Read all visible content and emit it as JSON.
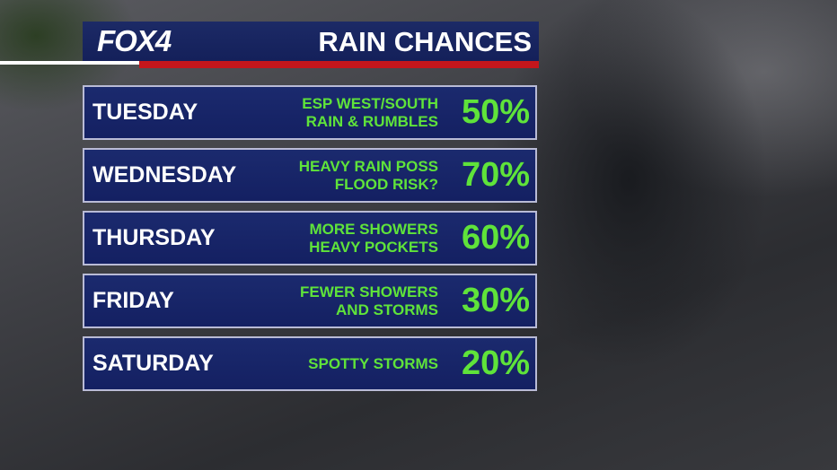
{
  "header": {
    "logo": "FOX4",
    "title": "RAIN CHANCES"
  },
  "rows": [
    {
      "day": "TUESDAY",
      "lines": [
        "ESP WEST/SOUTH",
        "RAIN & RUMBLES"
      ],
      "chance": "50%"
    },
    {
      "day": "WEDNESDAY",
      "lines": [
        "HEAVY RAIN POSS",
        "FLOOD RISK?"
      ],
      "chance": "70%"
    },
    {
      "day": "THURSDAY",
      "lines": [
        "MORE SHOWERS",
        "HEAVY POCKETS"
      ],
      "chance": "60%"
    },
    {
      "day": "FRIDAY",
      "lines": [
        "FEWER SHOWERS",
        "AND STORMS"
      ],
      "chance": "30%"
    },
    {
      "day": "SATURDAY",
      "lines": [
        "SPOTTY STORMS"
      ],
      "chance": "20%"
    }
  ]
}
